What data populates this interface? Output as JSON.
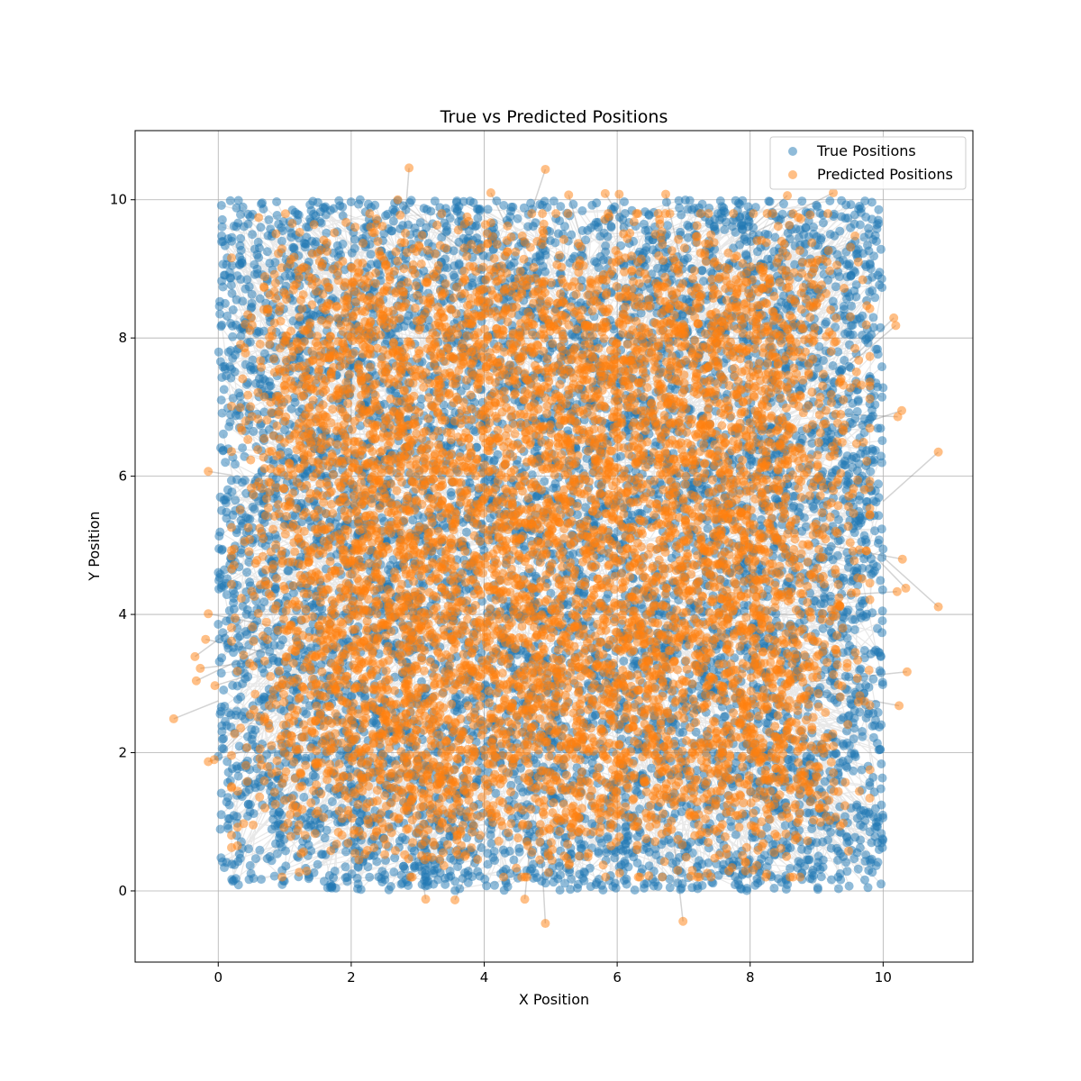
{
  "chart_data": {
    "type": "scatter",
    "title": "True vs Predicted Positions",
    "xlabel": "X Position",
    "ylabel": "Y Position",
    "xlim": [
      -1.25,
      11.35
    ],
    "ylim": [
      -1.03,
      11.0
    ],
    "xticks": [
      0,
      2,
      4,
      6,
      8,
      10
    ],
    "yticks": [
      0,
      2,
      4,
      6,
      8,
      10
    ],
    "grid": true,
    "legend_position": "top-right",
    "series": [
      {
        "name": "True Positions",
        "color": "#1f77b4",
        "alpha": 0.5,
        "distribution": "uniform",
        "range_x": [
          0,
          10
        ],
        "range_y": [
          0,
          10
        ],
        "approx_count": 10000
      },
      {
        "name": "Predicted Positions",
        "color": "#ff7f0e",
        "alpha": 0.5,
        "distribution": "concentrated toward center",
        "notable_outliers": [
          {
            "x": 2.87,
            "y": 10.46
          },
          {
            "x": 4.92,
            "y": 10.44
          },
          {
            "x": 4.1,
            "y": 10.1
          },
          {
            "x": 5.27,
            "y": 10.07
          },
          {
            "x": 5.82,
            "y": 10.09
          },
          {
            "x": 6.03,
            "y": 10.08
          },
          {
            "x": 6.73,
            "y": 10.08
          },
          {
            "x": 8.56,
            "y": 10.06
          },
          {
            "x": 9.25,
            "y": 10.1
          },
          {
            "x": 2.7,
            "y": 10.0
          },
          {
            "x": -0.15,
            "y": 6.07
          },
          {
            "x": 10.83,
            "y": 6.35
          },
          {
            "x": 10.28,
            "y": 6.95
          },
          {
            "x": 10.22,
            "y": 6.86
          },
          {
            "x": 10.16,
            "y": 8.29
          },
          {
            "x": 10.19,
            "y": 8.18
          },
          {
            "x": 10.29,
            "y": 4.8
          },
          {
            "x": 10.83,
            "y": 4.11
          },
          {
            "x": 10.21,
            "y": 4.33
          },
          {
            "x": 10.34,
            "y": 4.38
          },
          {
            "x": 10.36,
            "y": 3.17
          },
          {
            "x": 10.24,
            "y": 2.68
          },
          {
            "x": -0.67,
            "y": 2.49
          },
          {
            "x": -0.35,
            "y": 3.39
          },
          {
            "x": -0.33,
            "y": 3.04
          },
          {
            "x": -0.27,
            "y": 3.22
          },
          {
            "x": -0.19,
            "y": 3.64
          },
          {
            "x": -0.15,
            "y": 4.01
          },
          {
            "x": -0.15,
            "y": 1.87
          },
          {
            "x": -0.06,
            "y": 1.9
          },
          {
            "x": -0.05,
            "y": 2.97
          },
          {
            "x": 3.12,
            "y": -0.12
          },
          {
            "x": 3.56,
            "y": -0.13
          },
          {
            "x": 4.61,
            "y": -0.12
          },
          {
            "x": 4.92,
            "y": -0.47
          },
          {
            "x": 6.99,
            "y": -0.44
          }
        ]
      }
    ],
    "connecting_lines": {
      "color": "#808080",
      "alpha": 0.2,
      "description": "line from each true position to its predicted position"
    }
  }
}
